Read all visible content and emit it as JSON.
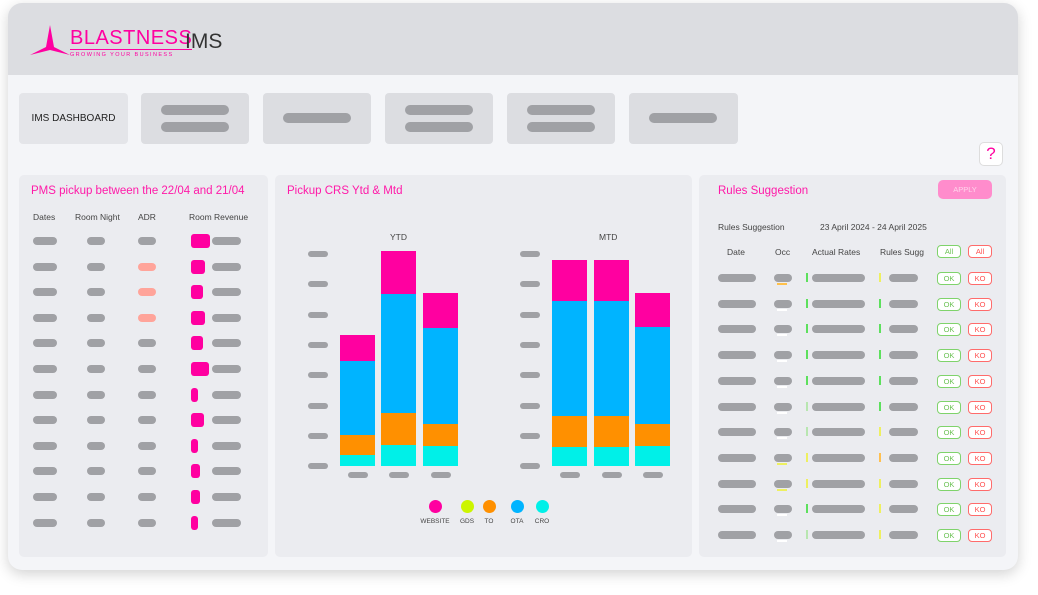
{
  "header": {
    "brand": "BLASTNESS",
    "tagline": "GROWING YOUR BUSINESS",
    "app_title": "IMS"
  },
  "nav": {
    "items": [
      {
        "label": "IMS DASHBOARD"
      },
      {
        "label": ""
      },
      {
        "label": ""
      },
      {
        "label": ""
      },
      {
        "label": ""
      },
      {
        "label": ""
      }
    ]
  },
  "help": {
    "label": "?"
  },
  "pms": {
    "title": "PMS pickup between the 22/04 and 21/04",
    "columns": [
      "Dates",
      "Room Night",
      "ADR",
      "Room Revenue"
    ],
    "revenue_levels": [
      1.0,
      0.74,
      0.63,
      0.74,
      0.63,
      0.95,
      0.37,
      0.68,
      0.37,
      0.47,
      0.47,
      0.37
    ],
    "adr_highlight": [
      false,
      true,
      true,
      true,
      false,
      false,
      false,
      false,
      false,
      false,
      false,
      false
    ]
  },
  "pickup": {
    "title": "Pickup CRS Ytd & Mtd",
    "chart_data": [
      {
        "type": "bar",
        "stacked": true,
        "title": "YTD",
        "categories": [
          "",
          "",
          ""
        ],
        "ylim": [
          0,
          230
        ],
        "series": [
          {
            "name": "CRO",
            "color": "#00f0e8",
            "values": [
              11,
              21,
              20
            ]
          },
          {
            "name": "TO",
            "color": "#ff9000",
            "values": [
              20,
              32,
              22
            ]
          },
          {
            "name": "OTA",
            "color": "#00b4ff",
            "values": [
              74,
              119,
              96
            ]
          },
          {
            "name": "WEBSITE",
            "color": "#ff00a0",
            "values": [
              26,
              43,
              35
            ]
          }
        ]
      },
      {
        "type": "bar",
        "stacked": true,
        "title": "MTD",
        "categories": [
          "",
          "",
          ""
        ],
        "ylim": [
          0,
          230
        ],
        "series": [
          {
            "name": "CRO",
            "color": "#00f0e8",
            "values": [
              19,
              19,
              20
            ]
          },
          {
            "name": "TO",
            "color": "#ff9000",
            "values": [
              31,
              31,
              22
            ]
          },
          {
            "name": "OTA",
            "color": "#00b4ff",
            "values": [
              115,
              115,
              97
            ]
          },
          {
            "name": "WEBSITE",
            "color": "#ff00a0",
            "values": [
              41,
              41,
              34
            ]
          }
        ]
      }
    ],
    "legend": [
      {
        "name": "WEBSITE",
        "color": "#ff00a0"
      },
      {
        "name": "GDS",
        "color": "#ccf500"
      },
      {
        "name": "TO",
        "color": "#ff9000"
      },
      {
        "name": "OTA",
        "color": "#00b4ff"
      },
      {
        "name": "CRO",
        "color": "#00f0e8"
      }
    ]
  },
  "rules": {
    "title": "Rules Suggestion",
    "apply_label": "APPLY",
    "subtitle": "Rules Suggestion",
    "date_range": "23 April 2024 - 24 April 2025",
    "columns": [
      "Date",
      "Occ",
      "Actual Rates",
      "Rules Sugg"
    ],
    "all_ok_label": "All",
    "all_ko_label": "All",
    "ok_label": "OK",
    "ko_label": "KO",
    "rows": [
      {
        "actual": "#5de05d",
        "rules": "#eef060",
        "occ": "#ffc04a"
      },
      {
        "actual": "#5de05d",
        "rules": "#5de05d",
        "occ": "#ffffff"
      },
      {
        "actual": "#5de05d",
        "rules": "#5de05d",
        "occ": "#ffffff"
      },
      {
        "actual": "#5de05d",
        "rules": "#5de05d",
        "occ": "#ffffff"
      },
      {
        "actual": "#5de05d",
        "rules": "#5de05d",
        "occ": "#ffffff"
      },
      {
        "actual": "#b8e6b0",
        "rules": "#5de05d",
        "occ": "#ffffff"
      },
      {
        "actual": "#b8e6b0",
        "rules": "#eef060",
        "occ": "#ffffff"
      },
      {
        "actual": "#eef060",
        "rules": "#ffc050",
        "occ": "#eef060"
      },
      {
        "actual": "#eef060",
        "rules": "#eef060",
        "occ": "#eef060"
      },
      {
        "actual": "#5de05d",
        "rules": "#eef060",
        "occ": "#ffffff"
      },
      {
        "actual": "#b8e6b0",
        "rules": "#eef060",
        "occ": "#ffffff"
      }
    ]
  }
}
